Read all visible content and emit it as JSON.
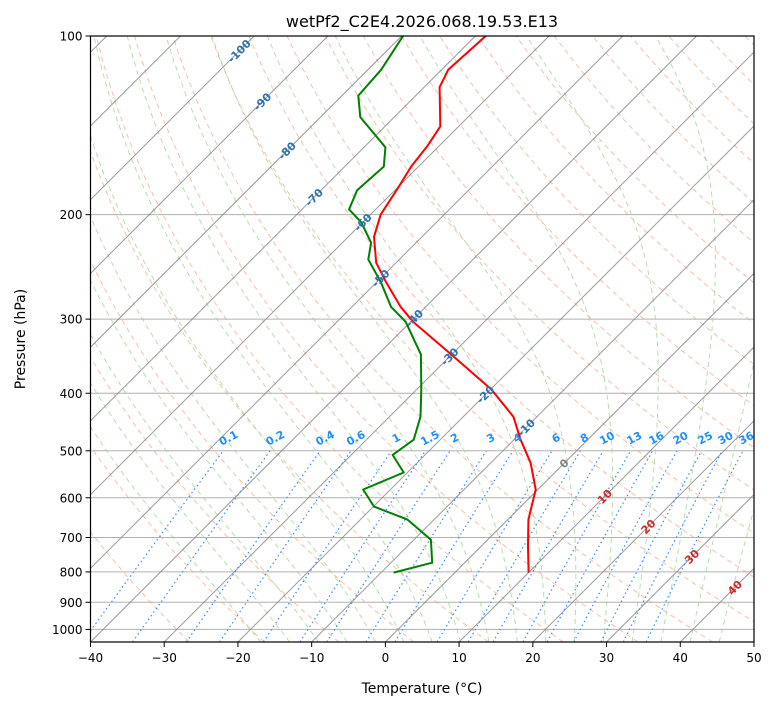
{
  "chart_data": {
    "type": "line",
    "subtype": "skew-t log-p",
    "title": "wetPf2_C2E4.2026.068.19.53.E13",
    "xlabel": "Temperature (°C)",
    "ylabel": "Pressure (hPa)",
    "xlim": [
      -40,
      50
    ],
    "ylim": [
      1050,
      100
    ],
    "x_ticks": [
      "−40",
      "−30",
      "−20",
      "−10",
      "0",
      "10",
      "20",
      "30",
      "40",
      "50"
    ],
    "x_tick_values": [
      -40,
      -30,
      -20,
      -10,
      0,
      10,
      20,
      30,
      40,
      50
    ],
    "y_ticks": [
      "100",
      "200",
      "300",
      "400",
      "500",
      "600",
      "700",
      "800",
      "900",
      "1000"
    ],
    "y_tick_values": [
      100,
      200,
      300,
      400,
      500,
      600,
      700,
      800,
      900,
      1000
    ],
    "grid": true,
    "skew_deg": 45,
    "series": [
      {
        "name": "temperature",
        "color": "#ff0000",
        "p": [
          100,
          114,
          122,
          142,
          153,
          166,
          180,
          200,
          218,
          241,
          260,
          286,
          303,
          344,
          394,
          438,
          479,
          524,
          581,
          653,
          725,
          802
        ],
        "t": [
          -68.6,
          -69.1,
          -67.9,
          -62.5,
          -61.6,
          -61.0,
          -59.9,
          -58.6,
          -56.5,
          -52.7,
          -48.7,
          -43.4,
          -39.7,
          -30.1,
          -19.9,
          -13.2,
          -9.1,
          -4.6,
          -0.3,
          2.8,
          6.4,
          10.0
        ]
      },
      {
        "name": "dewpoint",
        "color": "#008000",
        "p": [
          100,
          114,
          126,
          137,
          154,
          166,
          182,
          196,
          206,
          223,
          238,
          260,
          286,
          303,
          344,
          394,
          438,
          479,
          508,
          544,
          581,
          621,
          653,
          706,
          772,
          802
        ],
        "t": [
          -79.8,
          -78.2,
          -77.8,
          -74.6,
          -67.1,
          -64.7,
          -65.1,
          -63.6,
          -60.2,
          -56.1,
          -54.2,
          -49.4,
          -44.7,
          -40.7,
          -34.2,
          -29.4,
          -25.8,
          -23.6,
          -24.4,
          -20.5,
          -23.7,
          -19.9,
          -13.6,
          -7.7,
          -4.4,
          -8.3
        ]
      }
    ],
    "isotherm_labels": {
      "blue": [
        "-100",
        "-90",
        "-80",
        "-70",
        "-60",
        "-50",
        "-40",
        "-30",
        "-20",
        "-10"
      ],
      "gray": [
        "0"
      ],
      "red": [
        "10",
        "20",
        "30",
        "40"
      ]
    },
    "mixing_ratio_labels": [
      "0.1",
      "0.2",
      "0.4",
      "0.6",
      "1",
      "1.5",
      "2",
      "3",
      "4",
      "6",
      "8",
      "10",
      "13",
      "16",
      "20",
      "25",
      "30",
      "36"
    ],
    "colors": {
      "isotherm": "#808080",
      "dry_adiabat": "#f4a582",
      "moist_adiabat": "#a6d49a",
      "mixing_ratio": "#3c8cf0",
      "iso_label_blue": "#2a72b5",
      "iso_label_red": "#d62728",
      "mr_label": "#1e90ff"
    }
  }
}
